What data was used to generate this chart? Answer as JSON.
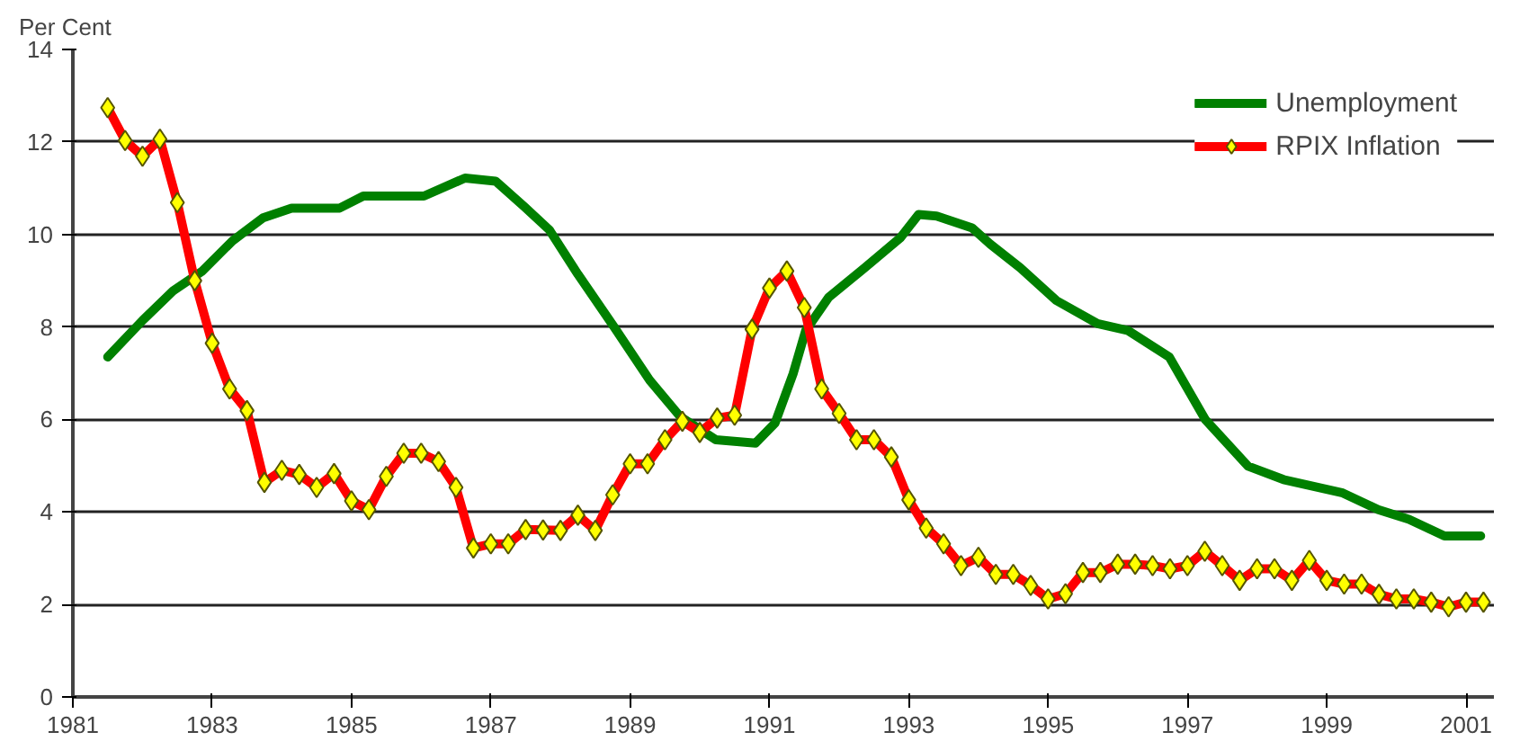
{
  "chart_data": {
    "type": "line",
    "ylabel": "Per Cent",
    "xlim": [
      1981,
      2001.4
    ],
    "xticks": [
      1981,
      1983,
      1985,
      1987,
      1989,
      1991,
      1993,
      1995,
      1997,
      1999,
      2001
    ],
    "ylim": [
      0,
      14
    ],
    "yticks": [
      0,
      2,
      4,
      6,
      8,
      10,
      12,
      14
    ],
    "grid": "y",
    "legend": "top right",
    "series": [
      {
        "name": "Unemployment",
        "color": "#008000",
        "marker": "none",
        "x": [
          1981.5,
          1982.0,
          1982.44,
          1982.86,
          1983.29,
          1983.73,
          1984.14,
          1984.83,
          1985.17,
          1986.04,
          1986.63,
          1987.07,
          1987.48,
          1987.84,
          1988.25,
          1988.77,
          1989.28,
          1989.72,
          1990.23,
          1990.8,
          1991.08,
          1991.34,
          1991.52,
          1991.85,
          1992.37,
          1992.88,
          1993.14,
          1993.4,
          1993.91,
          1994.17,
          1994.6,
          1995.12,
          1995.71,
          1996.15,
          1996.74,
          1997.26,
          1997.87,
          1998.38,
          1999.23,
          1999.74,
          2000.18,
          2000.69,
          2001.21
        ],
        "values": [
          7.35,
          8.14,
          8.78,
          9.21,
          9.86,
          10.36,
          10.57,
          10.57,
          10.83,
          10.83,
          11.22,
          11.15,
          10.6,
          10.1,
          9.14,
          8.0,
          6.85,
          6.06,
          5.56,
          5.49,
          5.92,
          6.99,
          7.92,
          8.64,
          9.28,
          9.93,
          10.43,
          10.4,
          10.14,
          9.79,
          9.28,
          8.57,
          8.07,
          7.92,
          7.35,
          5.99,
          4.99,
          4.7,
          4.41,
          4.05,
          3.84,
          3.48,
          3.48
        ]
      },
      {
        "name": "RPIX Inflation",
        "color": "#ff0000",
        "marker": "diamond",
        "x": [
          1981.5,
          1981.75,
          1982.0,
          1982.25,
          1982.5,
          1982.75,
          1983.0,
          1983.25,
          1983.5,
          1983.75,
          1984.0,
          1984.25,
          1984.5,
          1984.75,
          1985.0,
          1985.25,
          1985.5,
          1985.75,
          1986.0,
          1986.25,
          1986.5,
          1986.75,
          1987.0,
          1987.25,
          1987.5,
          1987.75,
          1988.0,
          1988.25,
          1988.5,
          1988.75,
          1989.0,
          1989.25,
          1989.5,
          1989.75,
          1990.0,
          1990.25,
          1990.5,
          1990.75,
          1991.0,
          1991.25,
          1991.5,
          1991.75,
          1992.0,
          1992.25,
          1992.5,
          1992.75,
          1993.0,
          1993.25,
          1993.5,
          1993.75,
          1994.0,
          1994.25,
          1994.5,
          1994.75,
          1995.0,
          1995.25,
          1995.5,
          1995.75,
          1996.0,
          1996.25,
          1996.5,
          1996.75,
          1997.0,
          1997.25,
          1997.5,
          1997.75,
          1998.0,
          1998.25,
          1998.5,
          1998.75,
          1999.0,
          1999.25,
          1999.5,
          1999.75,
          2000.0,
          2000.25,
          2000.5,
          2000.75,
          2001.0,
          2001.25
        ],
        "values": [
          12.74,
          12.03,
          11.69,
          12.06,
          10.69,
          9.0,
          7.65,
          6.66,
          6.19,
          4.64,
          4.9,
          4.81,
          4.53,
          4.83,
          4.24,
          4.05,
          4.77,
          5.27,
          5.27,
          5.09,
          4.53,
          3.22,
          3.31,
          3.31,
          3.62,
          3.61,
          3.6,
          3.93,
          3.6,
          4.37,
          5.04,
          5.04,
          5.56,
          5.96,
          5.72,
          6.03,
          6.09,
          7.95,
          8.84,
          9.21,
          8.42,
          6.66,
          6.13,
          5.56,
          5.56,
          5.19,
          4.26,
          3.65,
          3.31,
          2.84,
          3.02,
          2.65,
          2.65,
          2.41,
          2.12,
          2.23,
          2.69,
          2.69,
          2.87,
          2.87,
          2.84,
          2.77,
          2.84,
          3.15,
          2.84,
          2.52,
          2.77,
          2.77,
          2.52,
          2.95,
          2.52,
          2.44,
          2.44,
          2.22,
          2.12,
          2.12,
          2.05,
          1.95,
          2.05,
          2.05
        ]
      }
    ]
  }
}
